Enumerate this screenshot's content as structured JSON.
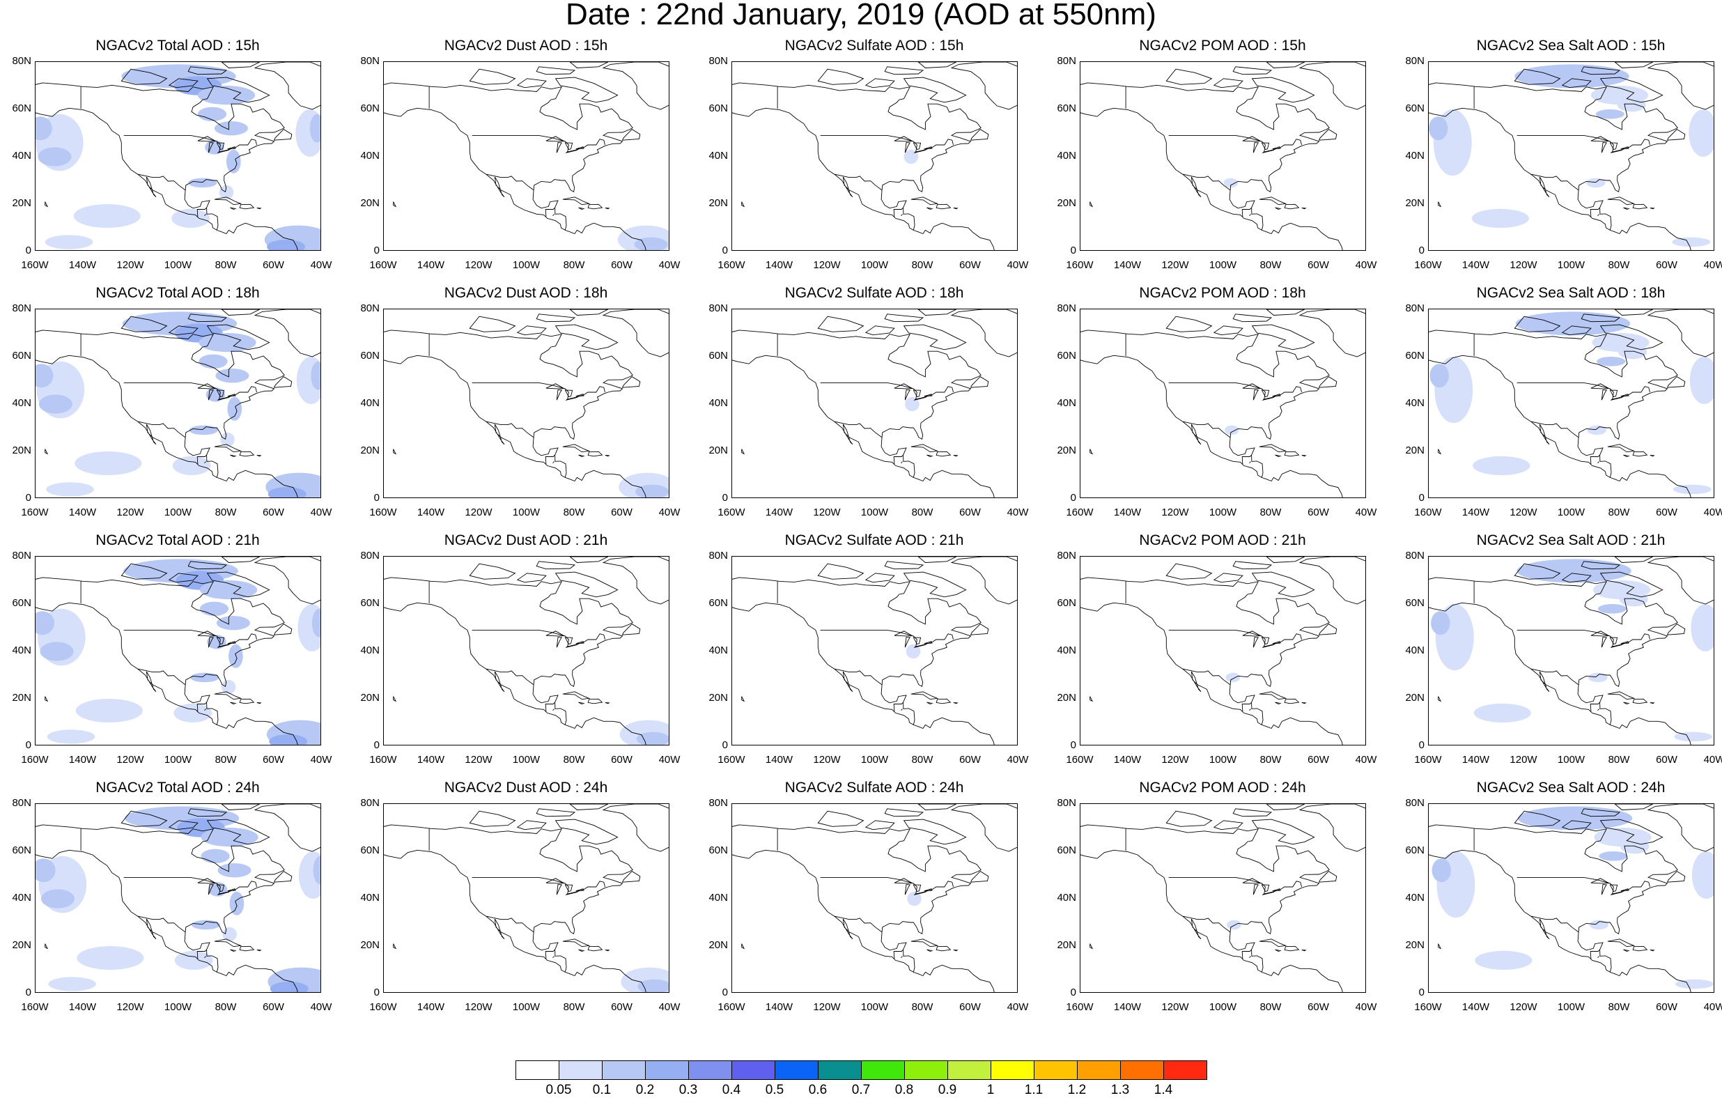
{
  "title": "Date : 22nd January, 2019 (AOD at 550nm)",
  "colors": {
    "palette": [
      "#ffffff",
      "#d6e0fa",
      "#b7c8f5",
      "#95aff2",
      "#7f90ef",
      "#5f5ff0",
      "#0a64f5",
      "#098f8f",
      "#3fe80a",
      "#8ef00a",
      "#c3f03c",
      "#ffff00",
      "#ffc300",
      "#ffa000",
      "#ff7000",
      "#ff2a10"
    ],
    "coastline": "#000000",
    "frame": "#000000"
  },
  "colorbar": {
    "labels": [
      "0.05",
      "0.1",
      "0.2",
      "0.3",
      "0.4",
      "0.5",
      "0.6",
      "0.7",
      "0.8",
      "0.9",
      "1",
      "1.1",
      "1.2",
      "1.3",
      "1.4"
    ]
  },
  "axes": {
    "lat_labels": [
      "80N",
      "60N",
      "40N",
      "20N",
      "0"
    ],
    "lon_labels": [
      "160W",
      "140W",
      "120W",
      "100W",
      "80W",
      "60W",
      "40W"
    ]
  },
  "rows": [
    {
      "panels": [
        "NGACv2 Total AOD : 15h",
        "NGACv2 Dust AOD : 15h",
        "NGACv2 Sulfate AOD : 15h",
        "NGACv2 POM AOD : 15h",
        "NGACv2 Sea Salt AOD : 15h"
      ]
    },
    {
      "panels": [
        "NGACv2 Total AOD : 18h",
        "NGACv2 Dust AOD : 18h",
        "NGACv2 Sulfate AOD : 18h",
        "NGACv2 POM AOD : 18h",
        "NGACv2 Sea Salt AOD : 18h"
      ]
    },
    {
      "panels": [
        "NGACv2 Total AOD : 21h",
        "NGACv2 Dust AOD : 21h",
        "NGACv2 Sulfate AOD : 21h",
        "NGACv2 POM AOD : 21h",
        "NGACv2 Sea Salt AOD : 21h"
      ]
    },
    {
      "panels": [
        "NGACv2 Total AOD : 24h",
        "NGACv2 Dust AOD : 24h",
        "NGACv2 Sulfate AOD : 24h",
        "NGACv2 POM AOD : 24h",
        "NGACv2 Sea Salt  AOD : 24h"
      ]
    }
  ]
}
